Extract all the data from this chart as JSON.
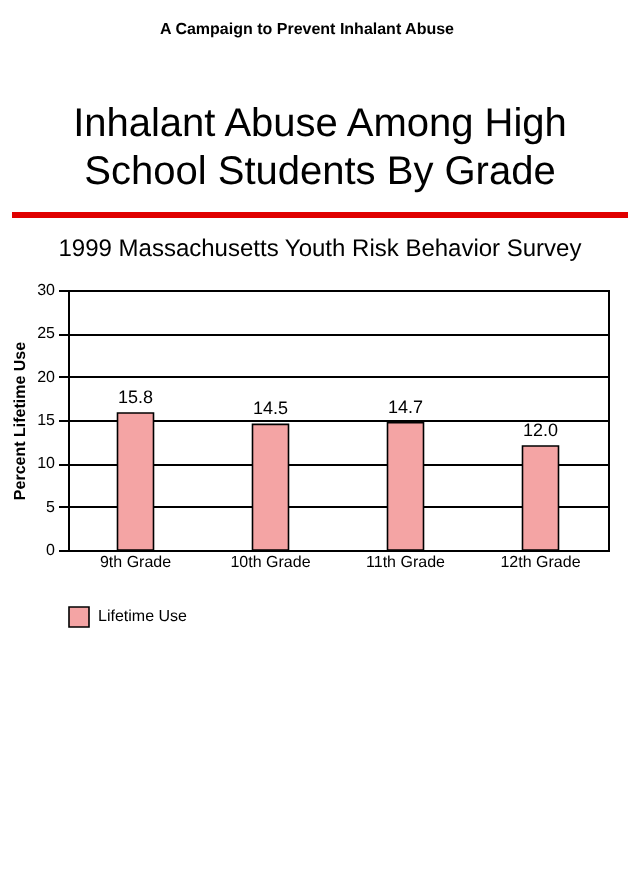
{
  "chart_data": {
    "type": "bar",
    "title": "Inhalant Abuse Among High School Students By Grade",
    "subtitle": "1999 Massachusetts Youth Risk Behavior Survey",
    "annotations": [
      "A Campaign to Prevent Inhalant Abuse"
    ],
    "ylabel": "Percent Lifetime Use",
    "categories": [
      "9th Grade",
      "10th Grade",
      "11th Grade",
      "12th Grade"
    ],
    "series": [
      {
        "name": "Lifetime Use",
        "color": "#f4a4a4",
        "values": [
          15.8,
          14.5,
          14.7,
          12.0
        ]
      }
    ],
    "ylim": [
      0,
      30
    ],
    "yticks": [
      0,
      5,
      10,
      15,
      20,
      25,
      30
    ],
    "value_labels": [
      "15.8",
      "14.5",
      "14.7",
      "12.0"
    ],
    "grid": "y",
    "legend": "bottom"
  }
}
